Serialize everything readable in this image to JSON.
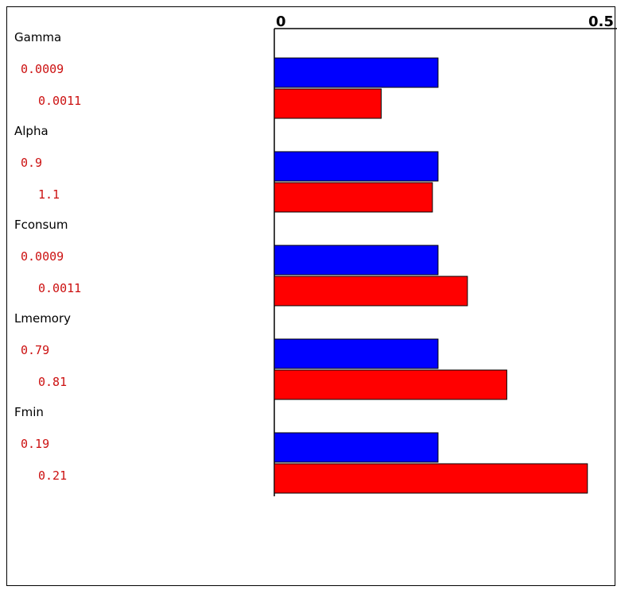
{
  "chart_data": {
    "type": "bar",
    "orientation": "horizontal",
    "axis": {
      "min": 0,
      "max": 0.5,
      "tick_labels": [
        "0",
        "0.5"
      ]
    },
    "colors": {
      "low": "#0000ff",
      "high": "#ff0000",
      "value_text": "#cc1111",
      "name_text": "#000000"
    },
    "groups": [
      {
        "name": "Gamma",
        "low_label": "0.0009",
        "high_label": "0.0011",
        "low_value": 0.262,
        "high_value": 0.171
      },
      {
        "name": "Alpha",
        "low_label": "0.9",
        "high_label": "1.1",
        "low_value": 0.262,
        "high_value": 0.253
      },
      {
        "name": "Fconsum",
        "low_label": "0.0009",
        "high_label": "0.0011",
        "low_value": 0.262,
        "high_value": 0.309
      },
      {
        "name": "Lmemory",
        "low_label": "0.79",
        "high_label": "0.81",
        "low_value": 0.262,
        "high_value": 0.372
      },
      {
        "name": "Fmin",
        "low_label": "0.19",
        "high_label": "0.21",
        "low_value": 0.262,
        "high_value": 0.501
      }
    ]
  }
}
